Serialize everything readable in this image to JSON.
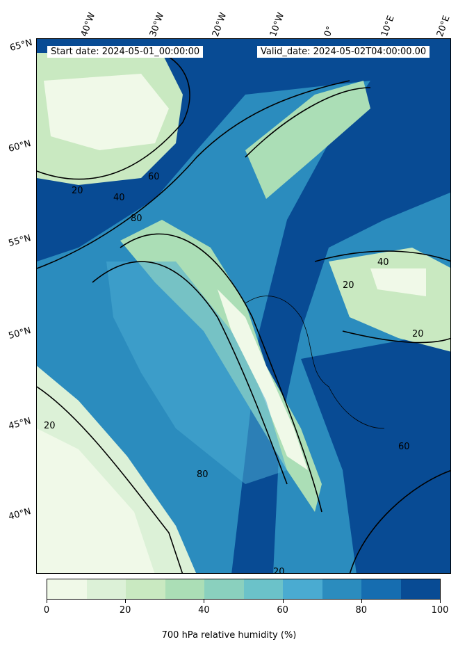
{
  "header": {
    "start": "Start date: 2024-05-01_00:00:00",
    "valid": "Valid_date: 2024-05-02T04:00:00.00"
  },
  "lon_labels": [
    "40°W",
    "30°W",
    "20°W",
    "10°W",
    "0°",
    "10°E",
    "20°E"
  ],
  "lat_labels": [
    "65°N",
    "60°N",
    "55°N",
    "50°N",
    "45°N",
    "40°N"
  ],
  "contour_labels": [
    "20",
    "40",
    "60",
    "80"
  ],
  "colorbar": {
    "title": "700 hPa relative humidity (%)",
    "ticks": [
      "0",
      "20",
      "40",
      "60",
      "80",
      "100"
    ],
    "levels": [
      0,
      10,
      20,
      30,
      40,
      50,
      60,
      70,
      80,
      90,
      100
    ],
    "colors": [
      "#f0f9e8",
      "#dcf1d7",
      "#c9e9c1",
      "#abdeb6",
      "#8ad0be",
      "#6bc2c9",
      "#4aabd1",
      "#2b8cbe",
      "#166db0",
      "#084b94"
    ]
  }
}
